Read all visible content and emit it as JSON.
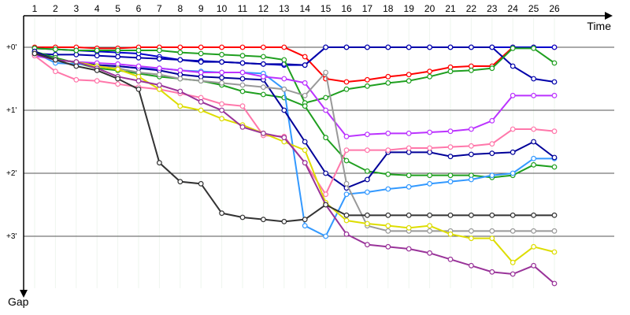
{
  "chart_data": {
    "type": "line",
    "title": "",
    "xlabel": "Time",
    "ylabel": "Gap",
    "x": [
      1,
      2,
      3,
      4,
      5,
      6,
      7,
      8,
      9,
      10,
      11,
      12,
      13,
      14,
      15,
      16,
      17,
      18,
      19,
      20,
      21,
      22,
      23,
      24,
      25,
      26
    ],
    "x_tick_labels": [
      "1",
      "2",
      "3",
      "4",
      "5",
      "6",
      "7",
      "8",
      "9",
      "10",
      "11",
      "12",
      "13",
      "14",
      "15",
      "16",
      "17",
      "18",
      "19",
      "20",
      "21",
      "22",
      "23",
      "24",
      "25",
      "26"
    ],
    "y_tick_labels": [
      "+0'",
      "+1'",
      "+2'",
      "+3'"
    ],
    "y_ticks": [
      0,
      60,
      120,
      180
    ],
    "xlim": [
      0,
      28
    ],
    "ylim": [
      0,
      240
    ],
    "y_inverted": true,
    "grid": true,
    "series": [
      {
        "color": "#ff0000",
        "values": [
          0,
          0,
          0,
          1,
          1,
          0,
          0,
          0,
          0,
          0,
          0,
          0,
          0,
          9,
          30,
          33,
          31,
          28,
          26,
          23,
          19,
          18,
          18,
          0,
          0,
          0
        ]
      },
      {
        "color": "#0000cc",
        "values": [
          1,
          2,
          3,
          4,
          5,
          6,
          9,
          12,
          13,
          14,
          15,
          16,
          17,
          17,
          0,
          0,
          0,
          0,
          0,
          0,
          0,
          0,
          0,
          0,
          0,
          0
        ]
      },
      {
        "color": "#0000aa",
        "values": [
          6,
          7,
          7,
          8,
          9,
          10,
          11,
          12,
          14,
          14,
          15,
          16,
          16,
          17,
          0,
          0,
          0,
          0,
          0,
          0,
          0,
          0,
          0,
          18,
          30,
          33
        ]
      },
      {
        "color": "#1f9f1f",
        "values": [
          1,
          2,
          3,
          3,
          3,
          3,
          3,
          5,
          6,
          7,
          8,
          9,
          12,
          53,
          48,
          40,
          37,
          34,
          32,
          28,
          23,
          22,
          20,
          1,
          1,
          15
        ]
      },
      {
        "color": "#1f9f1f",
        "values": [
          4,
          10,
          15,
          20,
          22,
          25,
          28,
          30,
          32,
          36,
          42,
          45,
          48,
          56,
          86,
          108,
          118,
          121,
          122,
          122,
          122,
          122,
          124,
          122,
          112,
          114
        ]
      },
      {
        "color": "#3399ff",
        "values": [
          5,
          15,
          16,
          17,
          18,
          20,
          20,
          22,
          23,
          24,
          24,
          25,
          40,
          170,
          180,
          140,
          138,
          135,
          133,
          130,
          128,
          126,
          122,
          120,
          106,
          106
        ]
      },
      {
        "color": "#000099",
        "values": [
          4,
          12,
          14,
          17,
          18,
          20,
          22,
          26,
          28,
          29,
          30,
          31,
          60,
          90,
          120,
          134,
          126,
          100,
          100,
          100,
          104,
          102,
          101,
          100,
          90,
          105
        ]
      },
      {
        "color": "#bb33ff",
        "values": [
          8,
          12,
          14,
          15,
          16,
          18,
          20,
          22,
          24,
          24,
          24,
          28,
          30,
          34,
          60,
          85,
          83,
          82,
          82,
          81,
          80,
          78,
          70,
          46,
          46,
          46
        ]
      },
      {
        "color": "#ff77aa",
        "values": [
          8,
          23,
          31,
          32,
          35,
          38,
          40,
          44,
          48,
          54,
          56,
          84,
          85,
          110,
          140,
          98,
          98,
          98,
          96,
          96,
          95,
          94,
          92,
          78,
          78,
          80
        ]
      },
      {
        "color": "#999999",
        "values": [
          6,
          12,
          14,
          18,
          20,
          24,
          26,
          30,
          32,
          34,
          36,
          38,
          40,
          46,
          24,
          130,
          170,
          175,
          175,
          175,
          175,
          175,
          175,
          175,
          175,
          175
        ]
      },
      {
        "color": "#dddd00",
        "values": [
          6,
          12,
          14,
          18,
          21,
          28,
          40,
          56,
          60,
          68,
          74,
          82,
          90,
          98,
          148,
          165,
          168,
          170,
          172,
          170,
          178,
          182,
          182,
          205,
          190,
          195
        ]
      },
      {
        "color": "#993399",
        "values": [
          6,
          12,
          14,
          20,
          28,
          32,
          36,
          42,
          52,
          60,
          76,
          82,
          86,
          110,
          150,
          178,
          188,
          190,
          192,
          196,
          202,
          208,
          214,
          216,
          208,
          225
        ]
      },
      {
        "color": "#333333",
        "values": [
          6,
          12,
          18,
          22,
          30,
          40,
          110,
          128,
          130,
          158,
          162,
          164,
          166,
          164,
          150,
          160,
          160,
          160,
          160,
          160,
          160,
          160,
          160,
          160,
          160,
          160
        ]
      }
    ]
  }
}
